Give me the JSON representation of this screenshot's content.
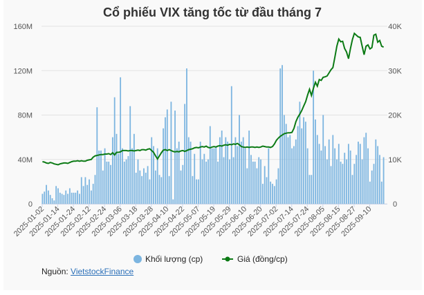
{
  "chart_data": {
    "type": "bar+line",
    "title": "Cổ phiếu VIX tăng tốc từ đầu tháng 7",
    "x_tick_labels": [
      "2025-01-02",
      "2025-01-14",
      "2025-01-24",
      "2025-02-12",
      "2025-02-24",
      "2025-03-06",
      "2025-03-18",
      "2025-03-28",
      "2025-04-10",
      "2025-04-22",
      "2025-05-07",
      "2025-05-19",
      "2025-05-29",
      "2025-06-10",
      "2025-06-20",
      "2025-07-02",
      "2025-07-14",
      "2025-07-24",
      "2025-08-05",
      "2025-08-15",
      "2025-08-27",
      "2025-09-10"
    ],
    "y_left": {
      "ticks": [
        "0",
        "40M",
        "80M",
        "120M",
        "160M"
      ],
      "range": [
        0,
        160
      ],
      "unit": "M"
    },
    "y_right": {
      "ticks": [
        "0",
        "10K",
        "20K",
        "30K",
        "40K"
      ],
      "range": [
        0,
        40
      ],
      "unit": "K"
    },
    "grid": true,
    "legend_position": "bottom",
    "series": [
      {
        "name": "Khối lượng (cp)",
        "type": "bar",
        "color": "#7cb5e0",
        "unit": "million shares",
        "values": [
          9,
          11,
          17,
          12,
          8,
          5,
          3,
          16,
          14,
          10,
          9,
          8,
          12,
          9,
          14,
          10,
          10,
          10,
          12,
          9,
          24,
          16,
          24,
          17,
          22,
          12,
          18,
          26,
          87,
          48,
          48,
          30,
          50,
          38,
          38,
          35,
          60,
          96,
          63,
          45,
          114,
          50,
          38,
          40,
          43,
          88,
          50,
          63,
          28,
          40,
          30,
          25,
          32,
          28,
          34,
          22,
          60,
          52,
          30,
          50,
          26,
          24,
          68,
          78,
          85,
          25,
          92,
          4,
          84,
          50,
          56,
          30,
          35,
          90,
          122,
          60,
          56,
          25,
          45,
          22,
          22,
          56,
          40,
          45,
          38,
          40,
          70,
          50,
          50,
          52,
          38,
          60,
          66,
          42,
          60,
          56,
          40,
          106,
          42,
          60,
          52,
          80,
          56,
          60,
          50,
          32,
          66,
          44,
          38,
          38,
          32,
          42,
          40,
          18,
          34,
          24,
          50,
          20,
          18,
          16,
          22,
          32,
          122,
          125,
          80,
          72,
          60,
          62,
          50,
          52,
          58,
          70,
          92,
          68,
          78,
          74,
          50,
          26,
          26,
          120,
          76,
          62,
          54,
          48,
          80,
          52,
          40,
          58,
          34,
          62,
          50,
          40,
          54,
          38,
          36,
          46,
          40,
          54,
          48,
          26,
          36,
          44,
          56,
          54,
          40,
          60,
          64,
          50,
          20,
          30,
          36,
          58,
          52,
          44,
          20,
          42
        ]
      },
      {
        "name": "Giá (đồng/cp)",
        "type": "line",
        "color": "#0b7a14",
        "unit": "thousand VND",
        "values": [
          9.5,
          9.4,
          9.2,
          9.1,
          9.3,
          9.2,
          9.0,
          8.9,
          8.8,
          9.0,
          9.1,
          9.2,
          9.2,
          9.1,
          9.3,
          9.5,
          9.6,
          9.6,
          9.7,
          9.6,
          9.7,
          9.6,
          9.6,
          9.8,
          9.9,
          10.0,
          10.5,
          10.8,
          10.9,
          11.0,
          11.1,
          11.1,
          11.2,
          11.2,
          11.3,
          11.1,
          11.5,
          11.0,
          11.6,
          11.6,
          11.7,
          12.0,
          12.0,
          12.0,
          11.9,
          12.0,
          12.0,
          11.9,
          12.0,
          12.1,
          12.0,
          12.2,
          12.2,
          12.1,
          12.3,
          12.4,
          12.0,
          11.6,
          10.8,
          10.1,
          10.8,
          11.5,
          12.1,
          12.2,
          12.0,
          12.2,
          12.0,
          11.8,
          11.7,
          11.8,
          11.7,
          11.9,
          12.0,
          11.8,
          12.0,
          12.2,
          12.3,
          12.4,
          12.6,
          12.7,
          12.6,
          12.8,
          12.9,
          12.8,
          13.0,
          12.7,
          12.6,
          12.8,
          12.9,
          12.8,
          13.0,
          13.1,
          13.0,
          13.2,
          13.3,
          13.2,
          13.4,
          13.3,
          13.5,
          13.4,
          13.6,
          13.3,
          12.9,
          12.8,
          12.7,
          12.8,
          12.7,
          12.8,
          12.8,
          12.7,
          12.8,
          12.7,
          12.8,
          13.0,
          12.9,
          12.8,
          12.8,
          12.7,
          12.9,
          13.5,
          14.3,
          14.8,
          15.2,
          15.5,
          15.8,
          15.9,
          16.0,
          16.0,
          16.1,
          17.0,
          18.5,
          19.5,
          20.2,
          21.0,
          22.0,
          23.0,
          24.5,
          25.8,
          24.4,
          26.0,
          27.4,
          26.5,
          28.0,
          27.8,
          28.5,
          28.6,
          28.8,
          29.5,
          30.2,
          30.7,
          33.0,
          35.5,
          37.1,
          36.5,
          36.6,
          35.0,
          34.2,
          32.7,
          35.0,
          37.0,
          38.4,
          38.0,
          37.6,
          37.5,
          35.5,
          33.6,
          35.5,
          35.8,
          34.9,
          35.2,
          38.0,
          38.2,
          36.4,
          36.8,
          35.5,
          35.3
        ]
      }
    ]
  },
  "source": {
    "label": "Nguồn:",
    "link_text": "VietstockFinance"
  }
}
